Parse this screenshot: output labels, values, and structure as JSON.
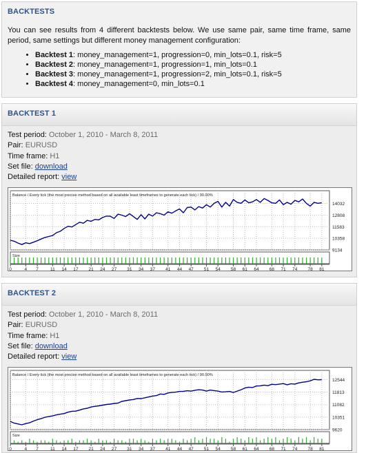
{
  "intro": {
    "title": "BACKTESTS",
    "text": "You can see results from 4 different backtests below. We use same pair, same time frame, same period, same settings but different money management configuration:",
    "items": [
      {
        "name": "Backtest 1",
        "params": ": money_management=1, progression=0, min_lots=0.1, risk=5"
      },
      {
        "name": "Backtest 2",
        "params": ": money_management=1, progression=1, min_lots=0.1"
      },
      {
        "name": "Backtest 3",
        "params": ": money_management=1, progression=2, min_lots=0.1, risk=5"
      },
      {
        "name": "Backtest 4",
        "params": ": money_management=0, min_lots=0.1"
      }
    ]
  },
  "backtests": [
    {
      "title": "BACKTEST 1",
      "period_label": "Test period: ",
      "period": "October 1, 2010 - March 8, 2011",
      "pair_label": "Pair: ",
      "pair": "EURUSD",
      "timeframe_label": "Time frame: ",
      "timeframe": "H1",
      "setfile_label": "Set file: ",
      "setfile_link": "download",
      "report_label": "Detailed report: ",
      "report_link": "view"
    },
    {
      "title": "BACKTEST 2",
      "period_label": "Test period: ",
      "period": "October 1, 2010 - March 8, 2011",
      "pair_label": "Pair: ",
      "pair": "EURUSD",
      "timeframe_label": "Time frame: ",
      "timeframe": "H1",
      "setfile_label": "Set file: ",
      "setfile_link": "download",
      "report_label": "Detailed report: ",
      "report_link": "view"
    }
  ],
  "chart_data": [
    {
      "type": "line",
      "title": "Balance / Every tick (the most precise method based on all available least timeframes to generate each tick) / 90.00%",
      "size_label": "Size",
      "x_ticks": [
        0,
        4,
        7,
        11,
        14,
        17,
        21,
        24,
        27,
        31,
        34,
        37,
        41,
        44,
        47,
        51,
        54,
        58,
        61,
        64,
        68,
        71,
        74,
        78,
        81
      ],
      "x_range": [
        0,
        83
      ],
      "y_ticks": [
        14032,
        12808,
        11583,
        10358,
        9134
      ],
      "ylim": [
        9134,
        14650
      ],
      "line_color": "#00008b",
      "size_bar_color": "#33aa33",
      "series": [
        {
          "values": [
            10150,
            10050,
            9850,
            9700,
            9880,
            9800,
            9950,
            10100,
            10280,
            10450,
            10550,
            10650,
            10950,
            11100,
            11400,
            11620,
            11550,
            11800,
            12050,
            11950,
            12250,
            12150,
            12350,
            12300,
            12550,
            12700,
            12680,
            12450,
            12900,
            12800,
            12650,
            12950,
            12650,
            12350,
            12850,
            12400,
            12900,
            12700,
            13050,
            12950,
            12800,
            13150,
            13000,
            13250,
            13450,
            13050,
            13600,
            13650,
            13350,
            13700,
            13550,
            13900,
            13650,
            14050,
            14250,
            13650,
            14150,
            13750,
            14450,
            14150,
            14050,
            14400,
            14100,
            14200,
            14450,
            14150,
            14550,
            14350,
            14100,
            14050,
            14400,
            13900,
            14150,
            13950,
            14350,
            14200,
            14500,
            14050,
            13750,
            14150,
            14050,
            14100
          ]
        }
      ],
      "size_values": [
        3,
        3,
        3,
        3,
        3,
        3,
        3,
        3,
        3,
        3,
        3,
        3,
        3,
        3,
        3,
        3,
        3,
        3,
        3,
        3,
        3,
        3,
        3,
        3,
        3,
        3,
        3,
        3,
        3,
        3,
        3,
        3,
        3,
        3,
        3,
        3,
        3,
        3,
        3,
        3,
        3,
        3,
        3,
        3,
        3,
        3,
        3,
        3,
        3,
        3,
        3,
        3,
        3,
        3,
        3,
        3,
        3,
        3,
        3,
        3,
        3,
        3,
        3,
        3,
        3,
        3,
        3,
        3,
        3,
        3,
        3,
        3,
        3,
        3,
        3,
        3,
        3,
        3,
        3,
        3,
        3,
        3
      ]
    },
    {
      "type": "line",
      "title": "Balance / Every tick (the most precise method based on all available least timeframes to generate each tick) / 90.00%",
      "size_label": "Size",
      "x_ticks": [
        0,
        4,
        7,
        11,
        14,
        17,
        21,
        24,
        27,
        31,
        34,
        37,
        41,
        44,
        47,
        51,
        54,
        58,
        61,
        64,
        68,
        71,
        74,
        78,
        81
      ],
      "x_range": [
        0,
        83
      ],
      "y_ticks": [
        12544,
        11813,
        11082,
        10351,
        9620
      ],
      "ylim": [
        9620,
        12680
      ],
      "line_color": "#00008b",
      "size_bar_color": "#33aa33",
      "series": [
        {
          "values": [
            10100,
            10000,
            9950,
            9900,
            9970,
            10020,
            10120,
            10200,
            10260,
            10340,
            10380,
            10420,
            10480,
            10520,
            10560,
            10640,
            10690,
            10700,
            10760,
            10830,
            10870,
            10940,
            10980,
            11010,
            11050,
            11090,
            11110,
            11150,
            11170,
            11270,
            11310,
            11350,
            11380,
            11440,
            11430,
            11480,
            11530,
            11580,
            11610,
            11700,
            11680,
            11760,
            11800,
            11810,
            11850,
            11860,
            11890,
            11870,
            11920,
            11950,
            11930,
            11870,
            11930,
            11900,
            11870,
            11820,
            11830,
            11850,
            11790,
            11870,
            11950,
            12050,
            12100,
            12080,
            12170,
            12180,
            12220,
            12190,
            12270,
            12250,
            12280,
            12310,
            12240,
            12300,
            12280,
            12350,
            12390,
            12420,
            12470,
            12560,
            12530,
            12540
          ]
        }
      ],
      "size_values": [
        1,
        2,
        1,
        2,
        1,
        3,
        2,
        1,
        2,
        2,
        1,
        3,
        2,
        1,
        2,
        2,
        3,
        1,
        2,
        2,
        3,
        2,
        1,
        3,
        2,
        2,
        1,
        3,
        2,
        2,
        1,
        3,
        3,
        2,
        3,
        2,
        1,
        3,
        2,
        3,
        2,
        3,
        3,
        2,
        1,
        3,
        2,
        3,
        4,
        2,
        3,
        4,
        3,
        3,
        2,
        4,
        3,
        1,
        3,
        4,
        3,
        2,
        4,
        3,
        4,
        2,
        3,
        4,
        3,
        4,
        2,
        3,
        4,
        3,
        2,
        4,
        3,
        4,
        2,
        4,
        3,
        3
      ]
    }
  ]
}
